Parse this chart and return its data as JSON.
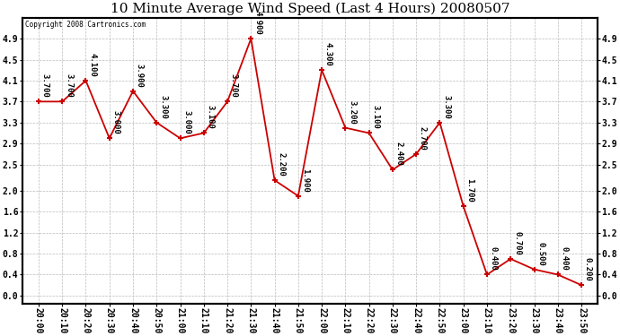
{
  "title": "10 Minute Average Wind Speed (Last 4 Hours) 20080507",
  "copyright": "Copyright 2008 Cartronics.com",
  "x_labels": [
    "20:00",
    "20:10",
    "20:20",
    "20:30",
    "20:40",
    "20:50",
    "21:00",
    "21:10",
    "21:20",
    "21:30",
    "21:40",
    "21:50",
    "22:00",
    "22:10",
    "22:20",
    "22:30",
    "22:40",
    "22:50",
    "23:00",
    "23:10",
    "23:20",
    "23:30",
    "23:40",
    "23:50"
  ],
  "y_values": [
    3.7,
    3.7,
    4.1,
    3.0,
    3.9,
    3.3,
    3.0,
    3.1,
    3.7,
    4.9,
    2.2,
    1.9,
    4.3,
    3.2,
    3.1,
    2.4,
    2.7,
    3.3,
    1.7,
    0.4,
    0.7,
    0.5,
    0.4,
    0.2
  ],
  "labels": [
    "3.700",
    "3.700",
    "4.100",
    "3.000",
    "3.900",
    "3.300",
    "3.000",
    "3.100",
    "3.700",
    "4.900",
    "2.200",
    "1.900",
    "4.300",
    "3.200",
    "3.100",
    "2.400",
    "2.700",
    "3.300",
    "1.700",
    "0.400",
    "0.700",
    "0.500",
    "0.400",
    "0.200"
  ],
  "line_color": "#cc0000",
  "marker_color": "#cc0000",
  "background_color": "#ffffff",
  "plot_bg_color": "#ffffff",
  "grid_color": "#bbbbbb",
  "title_fontsize": 11,
  "label_fontsize": 6.5,
  "tick_fontsize": 7,
  "ylim": [
    -0.15,
    5.3
  ],
  "yticks": [
    0.0,
    0.4,
    0.8,
    1.2,
    1.6,
    2.0,
    2.5,
    2.9,
    3.3,
    3.7,
    4.1,
    4.5,
    4.9
  ]
}
